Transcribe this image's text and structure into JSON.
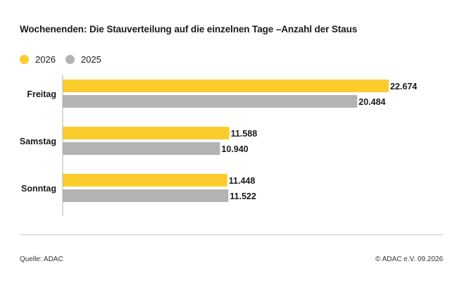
{
  "title": "Wochenenden: Die Stauverteilung auf die einzelnen Tage –Anzahl der Staus",
  "legend": [
    {
      "label": "2026",
      "color": "#FCCC2C"
    },
    {
      "label": "2025",
      "color": "#B3B3B3"
    }
  ],
  "chart_data": {
    "type": "bar",
    "orientation": "horizontal",
    "title": "Wochenenden: Die Stauverteilung auf die einzelnen Tage –Anzahl der Staus",
    "categories": [
      "Freitag",
      "Samstag",
      "Sonntag"
    ],
    "series": [
      {
        "name": "2026",
        "color": "#FCCC2C",
        "values": [
          22674,
          11588,
          11448
        ],
        "labels": [
          "22.674",
          "11.588",
          "11.448"
        ]
      },
      {
        "name": "2025",
        "color": "#B3B3B3",
        "values": [
          20484,
          10940,
          11522
        ],
        "labels": [
          "20.484",
          "10.940",
          "11.522"
        ]
      }
    ],
    "xlim": [
      0,
      22674
    ],
    "grid": false,
    "legend_position": "top-left"
  },
  "footer": {
    "source": "Quelle: ADAC",
    "copyright": "© ADAC e.V. 09.2026"
  }
}
